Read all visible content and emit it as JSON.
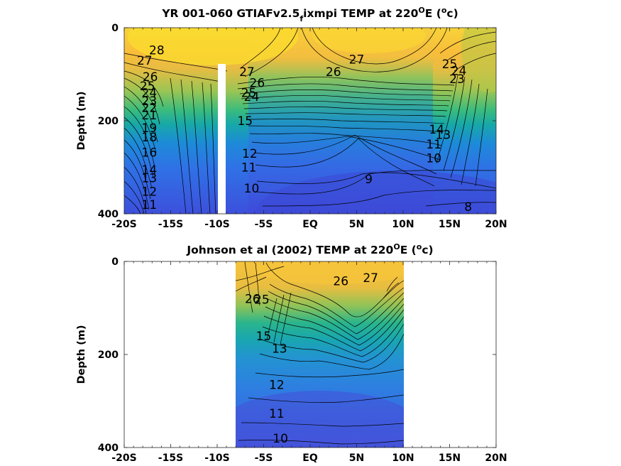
{
  "chart_data": [
    {
      "type": "contour",
      "title": "YR 001-060 GTIAFv2.5",
      "title_sub": "f",
      "title_rest": "ixmpi TEMP at 220",
      "title_sup": "O",
      "title_unit_pre": "E (",
      "title_unit_sup": "o",
      "title_unit_post": "c)",
      "ylabel": "Depth (m)",
      "xlim": [
        -20,
        20
      ],
      "ylim": [
        400,
        0
      ],
      "x_ticks": [
        -20,
        -15,
        -10,
        -5,
        0,
        5,
        10,
        15,
        20
      ],
      "x_tick_labels": [
        "-20S",
        "-15S",
        "-10S",
        "-5S",
        "EQ",
        "5N",
        "10N",
        "15N",
        "20N"
      ],
      "y_ticks": [
        0,
        200,
        400
      ],
      "y_tick_labels": [
        "0",
        "200",
        "400"
      ],
      "data_lon_range": [
        -20,
        20
      ],
      "gap_lon": -9.5,
      "gap_depth_top": 80,
      "contour_labels": [
        {
          "text": "28",
          "x": -16.5,
          "y": 48
        },
        {
          "text": "27",
          "x": -17.8,
          "y": 70
        },
        {
          "text": "26",
          "x": -17.2,
          "y": 105
        },
        {
          "text": "25",
          "x": -17.5,
          "y": 125
        },
        {
          "text": "24",
          "x": -17.3,
          "y": 140
        },
        {
          "text": "23",
          "x": -17.3,
          "y": 157
        },
        {
          "text": "22",
          "x": -17.3,
          "y": 172
        },
        {
          "text": "21",
          "x": -17.3,
          "y": 188
        },
        {
          "text": "19",
          "x": -17.3,
          "y": 215
        },
        {
          "text": "18",
          "x": -17.3,
          "y": 235
        },
        {
          "text": "16",
          "x": -17.3,
          "y": 268
        },
        {
          "text": "14",
          "x": -17.3,
          "y": 305
        },
        {
          "text": "13",
          "x": -17.3,
          "y": 323
        },
        {
          "text": "12",
          "x": -17.3,
          "y": 352
        },
        {
          "text": "11",
          "x": -17.3,
          "y": 380
        },
        {
          "text": "27",
          "x": -6.8,
          "y": 95
        },
        {
          "text": "26",
          "x": -5.7,
          "y": 118
        },
        {
          "text": "25",
          "x": -6.6,
          "y": 140
        },
        {
          "text": "24",
          "x": -6.3,
          "y": 148
        },
        {
          "text": "15",
          "x": -7.0,
          "y": 200
        },
        {
          "text": "12",
          "x": -6.5,
          "y": 270
        },
        {
          "text": "11",
          "x": -6.6,
          "y": 300
        },
        {
          "text": "10",
          "x": -6.3,
          "y": 345
        },
        {
          "text": "26",
          "x": 2.5,
          "y": 95
        },
        {
          "text": "27",
          "x": 5.0,
          "y": 68
        },
        {
          "text": "9",
          "x": 6.3,
          "y": 325
        },
        {
          "text": "25",
          "x": 15.0,
          "y": 78
        },
        {
          "text": "24",
          "x": 16.0,
          "y": 92
        },
        {
          "text": "23",
          "x": 15.8,
          "y": 110
        },
        {
          "text": "14",
          "x": 13.6,
          "y": 218
        },
        {
          "text": "13",
          "x": 14.3,
          "y": 230
        },
        {
          "text": "11",
          "x": 13.3,
          "y": 250
        },
        {
          "text": "10",
          "x": 13.3,
          "y": 280
        },
        {
          "text": "8",
          "x": 17.0,
          "y": 385
        }
      ]
    },
    {
      "type": "contour",
      "title": "Johnson et al (2002) TEMP at 220",
      "title_sup": "O",
      "title_unit_pre": "E (",
      "title_unit_sup": "o",
      "title_unit_post": "c)",
      "ylabel": "Depth (m)",
      "xlim": [
        -20,
        20
      ],
      "ylim": [
        400,
        0
      ],
      "x_ticks": [
        -20,
        -15,
        -10,
        -5,
        0,
        5,
        10,
        15,
        20
      ],
      "x_tick_labels": [
        "-20S",
        "-15S",
        "-10S",
        "-5S",
        "EQ",
        "5N",
        "10N",
        "15N",
        "20N"
      ],
      "y_ticks": [
        0,
        200,
        400
      ],
      "y_tick_labels": [
        "0",
        "200",
        "400"
      ],
      "data_lon_range": [
        -8,
        10
      ],
      "contour_labels": [
        {
          "text": "26",
          "x": -6.2,
          "y": 80
        },
        {
          "text": "25",
          "x": -5.2,
          "y": 82
        },
        {
          "text": "15",
          "x": -5.0,
          "y": 160
        },
        {
          "text": "13",
          "x": -3.3,
          "y": 187
        },
        {
          "text": "12",
          "x": -3.6,
          "y": 265
        },
        {
          "text": "11",
          "x": -3.6,
          "y": 327
        },
        {
          "text": "10",
          "x": -3.2,
          "y": 380
        },
        {
          "text": "26",
          "x": 3.3,
          "y": 42
        },
        {
          "text": "27",
          "x": 6.5,
          "y": 35
        }
      ]
    }
  ]
}
